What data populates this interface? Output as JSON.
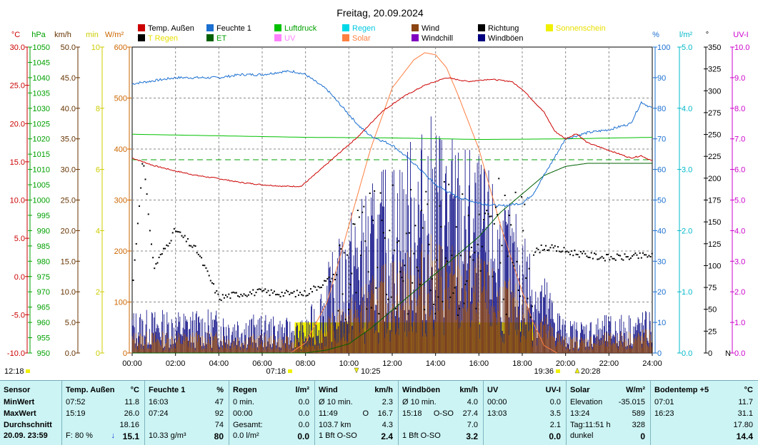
{
  "title": "Freitag, 20.09.2024",
  "axes": {
    "temp": {
      "unit": "°C",
      "ticks": [
        "30.0",
        "25.0",
        "20.0",
        "15.0",
        "10.0",
        "5.0",
        "0.0",
        "-5.0",
        "-10.0"
      ],
      "color": "#cc0000"
    },
    "hpa": {
      "unit": "hPa",
      "ticks": [
        "1050",
        "1045",
        "1040",
        "1035",
        "1030",
        "1025",
        "1020",
        "1015",
        "1010",
        "1005",
        "1000",
        "995",
        "990",
        "985",
        "980",
        "975",
        "970",
        "965",
        "960",
        "955",
        "950"
      ],
      "color": "#00a000"
    },
    "kmh": {
      "unit": "km/h",
      "ticks": [
        "50.0",
        "45.0",
        "40.0",
        "35.0",
        "30.0",
        "25.0",
        "20.0",
        "15.0",
        "10.0",
        "5.0",
        "0.0"
      ],
      "color": "#663300"
    },
    "min": {
      "unit": "min",
      "ticks": [
        "10",
        "8",
        "6",
        "4",
        "2",
        "0"
      ],
      "color": "#cccc00"
    },
    "wm2": {
      "unit": "W/m²",
      "ticks": [
        "600",
        "500",
        "400",
        "300",
        "200",
        "100",
        "0"
      ],
      "color": "#cc6600"
    },
    "pct": {
      "unit": "%",
      "ticks": [
        "100",
        "90",
        "80",
        "70",
        "60",
        "50",
        "40",
        "30",
        "20",
        "10",
        "0"
      ],
      "color": "#1a6fd0"
    },
    "lm2": {
      "unit": "l/m²",
      "ticks": [
        "5.0",
        "4.0",
        "3.0",
        "2.0",
        "1.0",
        "0.0"
      ],
      "color": "#00b8c8"
    },
    "deg": {
      "unit": "°",
      "ticks": [
        "350",
        "325",
        "300",
        "275",
        "250",
        "225",
        "200",
        "175",
        "150",
        "125",
        "100",
        "75",
        "50",
        "25",
        "0"
      ],
      "color": "#000000",
      "north": "N"
    },
    "uvi": {
      "unit": "UV-I",
      "ticks": [
        "10.0",
        "9.0",
        "8.0",
        "7.0",
        "6.0",
        "5.0",
        "4.0",
        "3.0",
        "2.0",
        "1.0",
        "0.0"
      ],
      "color": "#cc00cc"
    },
    "time": {
      "ticks": [
        "00:00",
        "02:00",
        "04:00",
        "06:00",
        "08:00",
        "10:00",
        "12:00",
        "14:00",
        "16:00",
        "18:00",
        "20:00",
        "22:00",
        "24:00"
      ]
    }
  },
  "legend": [
    {
      "label": "Temp. Außen",
      "color": "#cc0000"
    },
    {
      "label": "Feuchte 1",
      "color": "#1a6fd0"
    },
    {
      "label": "Luftdruck",
      "color": "#00c000"
    },
    {
      "label": "Regen",
      "color": "#00d8e8"
    },
    {
      "label": "Wind",
      "color": "#8b4513"
    },
    {
      "label": "Richtung",
      "color": "#000000"
    },
    {
      "label": "Sonnenschein",
      "color": "#f0f000"
    },
    {
      "label": "T Regen",
      "color": "#000000"
    },
    {
      "label": "ET",
      "color": "#006000"
    },
    {
      "label": "UV",
      "color": "#ff80ff"
    },
    {
      "label": "Solar",
      "color": "#ff7f40"
    },
    {
      "label": "Windchill",
      "color": "#8000c0"
    },
    {
      "label": "Windböen",
      "color": "#000080"
    }
  ],
  "markers": {
    "clock": "12:18",
    "sunrise": "07:18",
    "noon": "10:25",
    "civil": "19:36",
    "sunset": "20:28"
  },
  "chart_data": {
    "type": "line",
    "title": "Freitag, 20.09.2024",
    "x_unit": "hours",
    "xlim": [
      0,
      24
    ],
    "series": [
      {
        "name": "Temp. Außen",
        "unit": "°C",
        "ylim": [
          -10,
          30
        ],
        "x": [
          0,
          0.5,
          1,
          2,
          3,
          4,
          5,
          6,
          7,
          7.8,
          8.5,
          9.5,
          10.5,
          11.5,
          12.5,
          13.5,
          14.5,
          15.5,
          16.5,
          17.5,
          18,
          19,
          19.5,
          20,
          20.5,
          21,
          22,
          23,
          23.5,
          24
        ],
        "values": [
          15.5,
          15,
          14.5,
          13.8,
          13.2,
          12.8,
          12.3,
          12,
          11.8,
          11.8,
          13.5,
          16,
          18.5,
          21.5,
          23.5,
          25,
          26,
          25.5,
          25.8,
          25.5,
          24.5,
          21.5,
          19,
          18,
          18.7,
          17.5,
          16.5,
          15.5,
          15.8,
          15.1
        ]
      },
      {
        "name": "Feuchte 1",
        "unit": "%",
        "ylim": [
          0,
          100
        ],
        "x": [
          0,
          1,
          2,
          3,
          4,
          5,
          6,
          7,
          7.5,
          8,
          9,
          10,
          10.5,
          11,
          12,
          13,
          14,
          15,
          16,
          17,
          18,
          18.5,
          19,
          19.5,
          20,
          21,
          22,
          23,
          23.5,
          24
        ],
        "values": [
          88,
          89,
          90,
          90,
          90,
          91,
          91,
          92,
          92,
          91,
          86,
          78,
          74,
          71,
          68,
          62,
          55,
          51,
          49,
          48,
          49,
          52,
          58,
          64,
          70,
          72,
          73,
          75,
          82,
          80
        ]
      },
      {
        "name": "Luftdruck",
        "unit": "hPa",
        "ylim": [
          950,
          1050
        ],
        "x": [
          0,
          4,
          8,
          12,
          16,
          20,
          24
        ],
        "values": [
          1021.5,
          1021,
          1020.5,
          1020.3,
          1019.8,
          1020,
          1020.5
        ]
      },
      {
        "name": "ET",
        "unit": "l/m²",
        "ylim": [
          0,
          5
        ],
        "x": [
          0,
          8,
          9,
          10,
          11,
          12,
          13,
          14,
          15,
          16,
          17,
          18,
          19,
          20,
          21,
          22,
          24
        ],
        "values": [
          0,
          0,
          0.05,
          0.15,
          0.4,
          0.7,
          1,
          1.3,
          1.6,
          1.9,
          2.3,
          2.6,
          2.9,
          3.05,
          3.1,
          3.1,
          3.1
        ]
      },
      {
        "name": "Solar",
        "unit": "W/m²",
        "ylim": [
          0,
          600
        ],
        "x": [
          7.3,
          8,
          9,
          10,
          11,
          12,
          13,
          13.5,
          14,
          14.5,
          15,
          16,
          17,
          18,
          18.5,
          19,
          19.6
        ],
        "values": [
          0,
          20,
          100,
          250,
          400,
          520,
          575,
          589,
          585,
          560,
          510,
          400,
          250,
          120,
          60,
          15,
          0
        ]
      },
      {
        "name": "Sonnenschein",
        "unit": "min",
        "ylim": [
          0,
          10
        ],
        "x": [
          7.5,
          18.5
        ],
        "values": [
          1,
          1
        ]
      },
      {
        "name": "Wind",
        "unit": "km/h",
        "ylim": [
          0,
          50
        ],
        "x": [
          0,
          4,
          8,
          10,
          12,
          14,
          16,
          18,
          20,
          24
        ],
        "values": [
          2,
          2,
          1.5,
          5,
          9,
          11,
          9,
          6,
          1.5,
          2.3
        ]
      },
      {
        "name": "Windböen",
        "unit": "km/h",
        "ylim": [
          0,
          50
        ],
        "x": [
          0,
          4,
          8,
          10,
          12,
          14,
          16,
          18,
          20,
          24
        ],
        "values": [
          4,
          4,
          3,
          13,
          18,
          22,
          18,
          12,
          3,
          4
        ]
      },
      {
        "name": "Richtung",
        "unit": "°",
        "ylim": [
          0,
          360
        ],
        "x": [
          0,
          0.5,
          1,
          2,
          3,
          4,
          5,
          6,
          7,
          8,
          10,
          12,
          14,
          16,
          17,
          18,
          19,
          20,
          21,
          22,
          23,
          24
        ],
        "values": [
          70,
          230,
          100,
          145,
          120,
          65,
          70,
          72,
          70,
          70,
          100,
          120,
          125,
          120,
          130,
          110,
          125,
          120,
          115,
          112,
          113,
          115
        ]
      }
    ]
  },
  "panel": {
    "cols": [
      {
        "key": "sensor",
        "head": "Sensor",
        "rows": [
          "MinWert",
          "MaxWert",
          "Durchschnitt",
          "20.09. 23:59"
        ]
      },
      {
        "key": "temp",
        "head": "Temp. Außen",
        "unit": "°C",
        "rows": [
          [
            "07:52",
            "",
            "11.8"
          ],
          [
            "15:19",
            "",
            "26.0"
          ],
          [
            "",
            "",
            "18.16"
          ],
          [
            "F: 80 %",
            "↓",
            "15.1"
          ]
        ]
      },
      {
        "key": "feuchte",
        "head": "Feuchte 1",
        "unit": "%",
        "rows": [
          [
            "16:03",
            "",
            "47"
          ],
          [
            "07:24",
            "",
            "92"
          ],
          [
            "",
            "",
            "74"
          ],
          [
            "10.33 g/m³",
            "",
            "80"
          ]
        ]
      },
      {
        "key": "regen",
        "head": "Regen",
        "unit": "l/m²",
        "rows": [
          [
            "0 min.",
            "",
            "0.0"
          ],
          [
            "00:00",
            "",
            "0.0"
          ],
          [
            "Gesamt:",
            "",
            "0.0"
          ],
          [
            "0.0 l/m²",
            "",
            "0.0"
          ]
        ]
      },
      {
        "key": "wind",
        "head": "Wind",
        "unit": "km/h",
        "rows": [
          [
            "Ø 10 min.",
            "",
            "2.3"
          ],
          [
            "11:49",
            "O",
            "16.7"
          ],
          [
            "103.7 km",
            "",
            "4.3"
          ],
          [
            "1 Bft O-SO",
            "",
            "2.4"
          ]
        ]
      },
      {
        "key": "boeen",
        "head": "Windböen",
        "unit": "km/h",
        "rows": [
          [
            "Ø 10 min.",
            "",
            "4.0"
          ],
          [
            "15:18",
            "O-SO",
            "27.4"
          ],
          [
            "",
            "",
            "7.0"
          ],
          [
            "1 Bft O-SO",
            "",
            "3.2"
          ]
        ]
      },
      {
        "key": "uv",
        "head": "UV",
        "unit": "UV-I",
        "rows": [
          [
            "00:00",
            "",
            "0.0"
          ],
          [
            "13:03",
            "",
            "3.5"
          ],
          [
            "",
            "",
            "2.1"
          ],
          [
            "",
            "",
            "0.0"
          ]
        ]
      },
      {
        "key": "solar",
        "head": "Solar",
        "unit": "W/m²",
        "rows": [
          [
            "Elevation",
            "",
            "-35.015"
          ],
          [
            "13:24",
            "",
            "589"
          ],
          [
            "Tag:11:51 h",
            "",
            "328"
          ],
          [
            "dunkel",
            "",
            "0"
          ]
        ]
      },
      {
        "key": "boden",
        "head": "Bodentemp +5",
        "unit": "°C",
        "rows": [
          [
            "07:01",
            "",
            "11.7"
          ],
          [
            "16:23",
            "",
            "31.1"
          ],
          [
            "",
            "",
            "17.80"
          ],
          [
            "",
            "",
            "14.4"
          ]
        ]
      }
    ]
  }
}
